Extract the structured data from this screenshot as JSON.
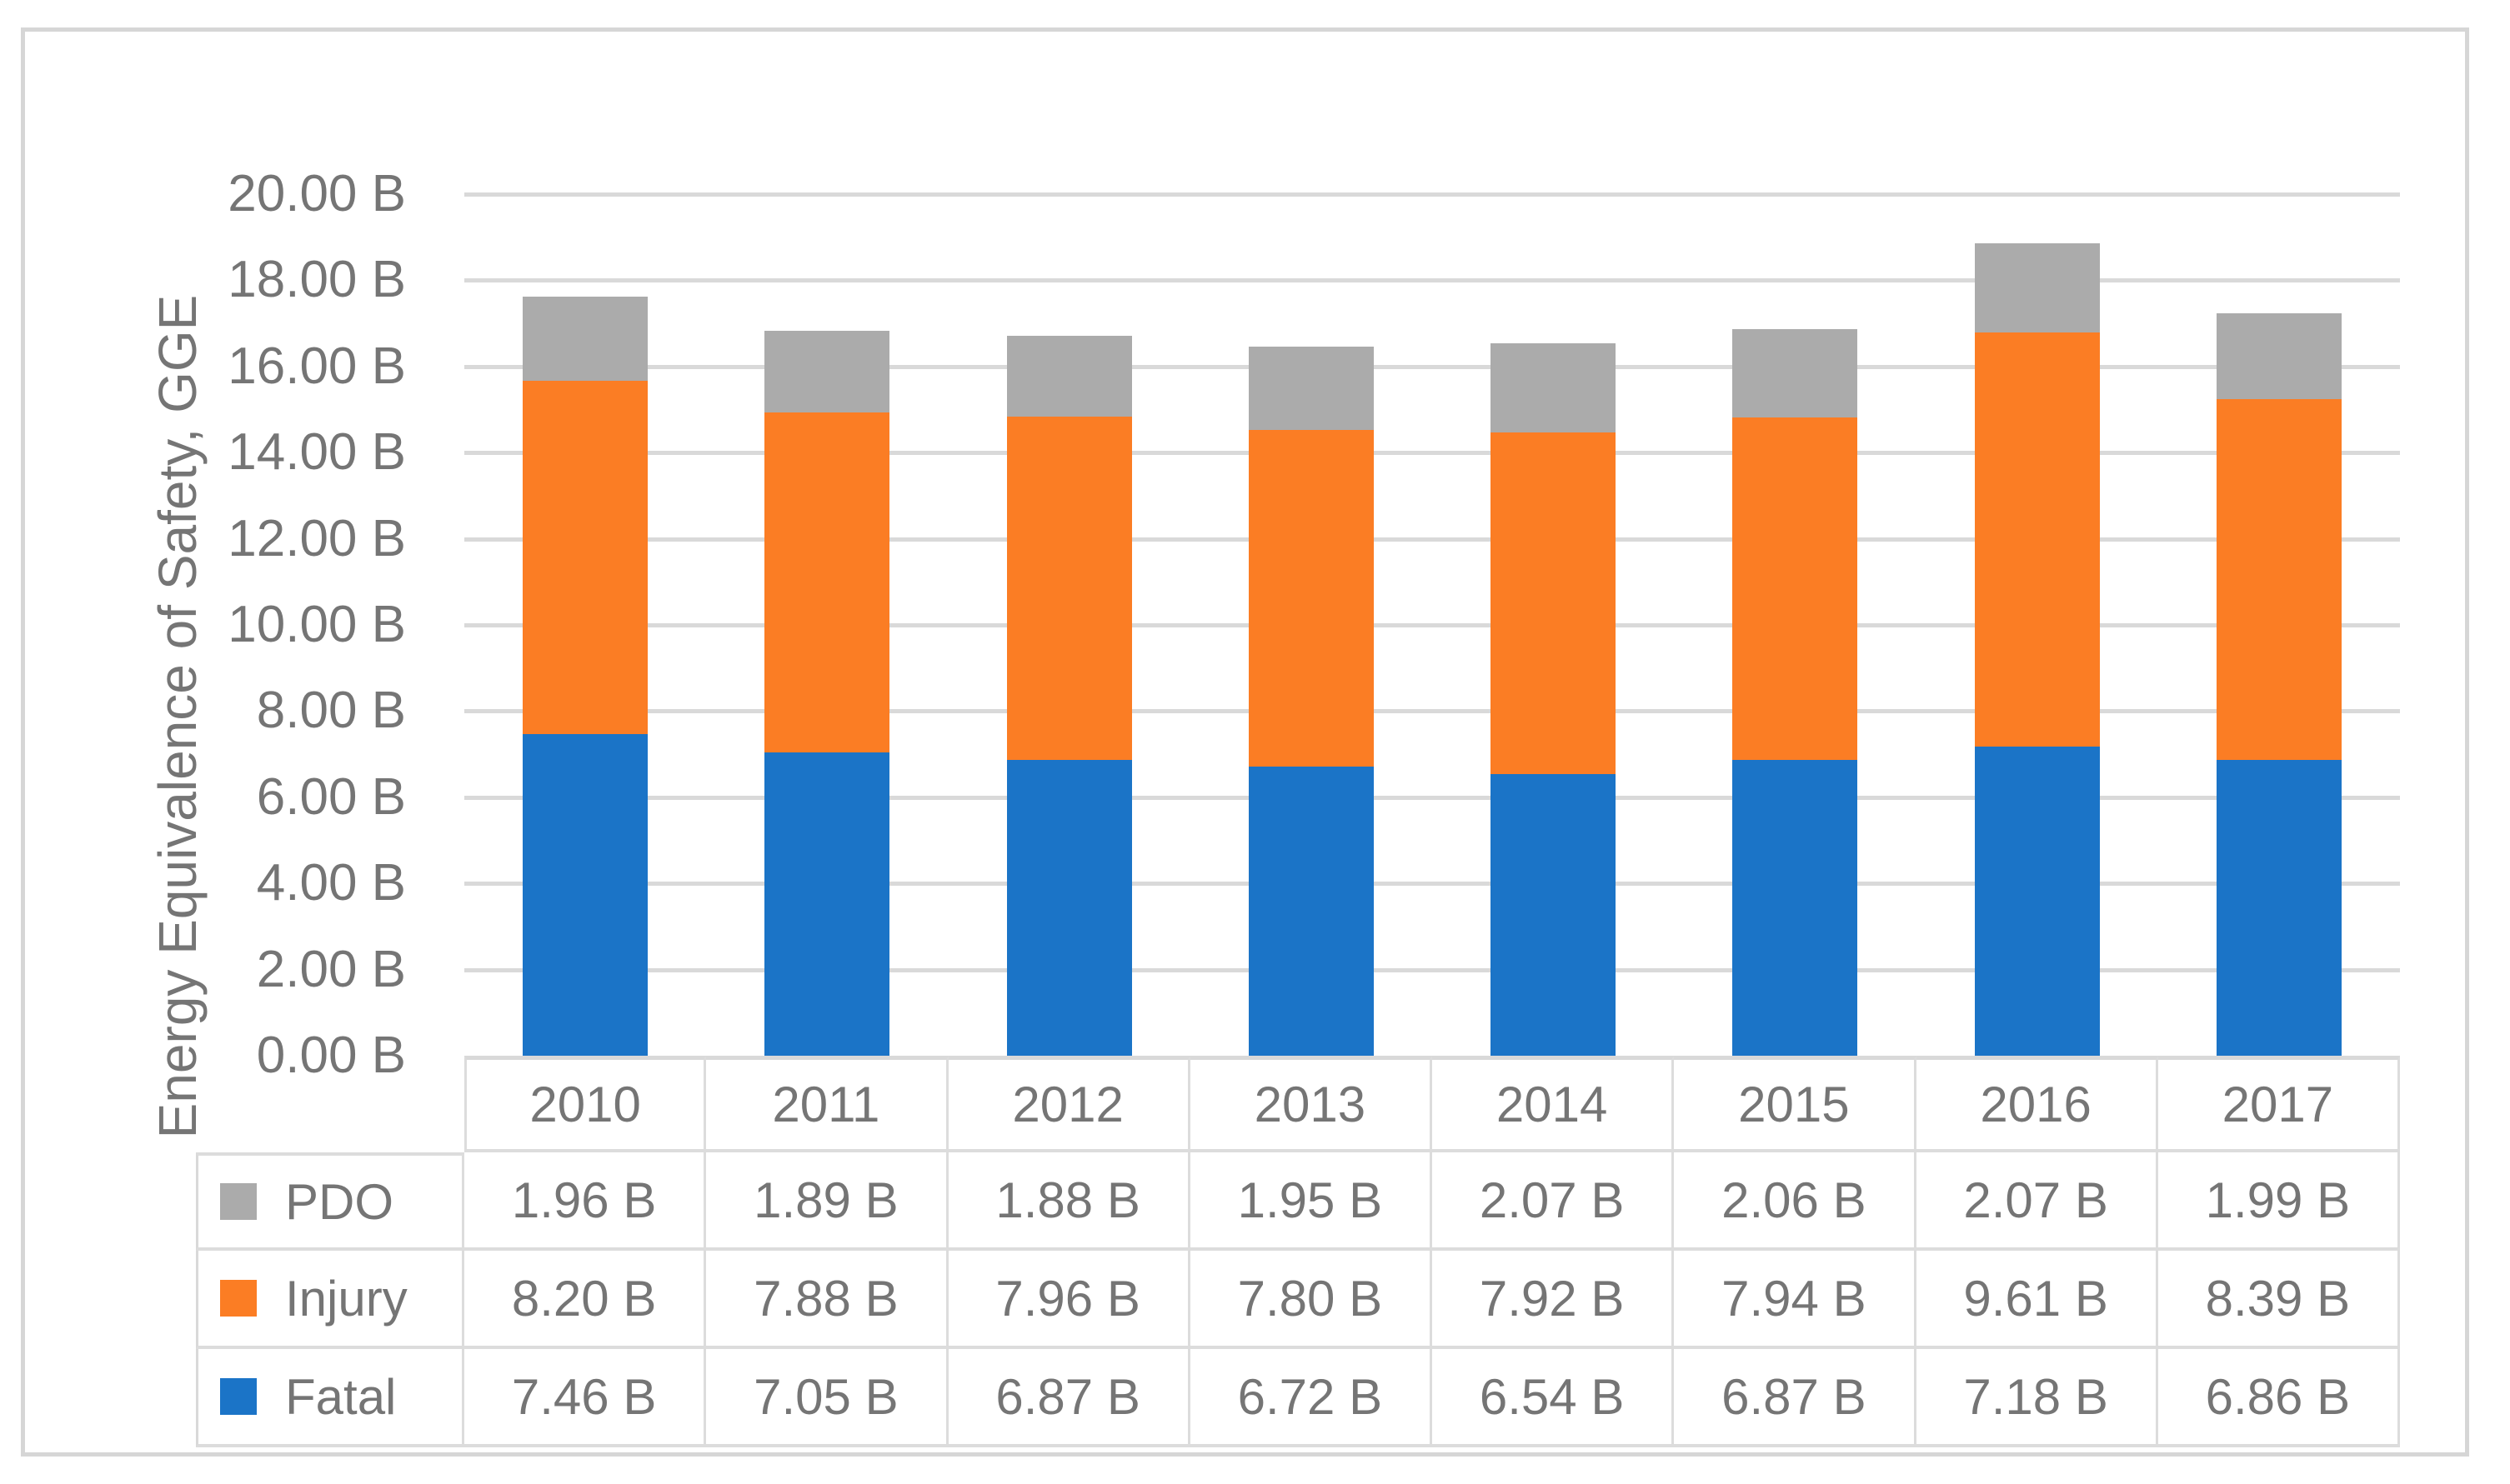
{
  "chart_data": {
    "type": "bar",
    "stacked": true,
    "title": "",
    "xlabel": "",
    "ylabel": "Energy Equivalence of Safety, GGE",
    "value_suffix": " B",
    "ylim": [
      0,
      20
    ],
    "ytick_step": 2,
    "grid": true,
    "legend_position": "data-table-left",
    "categories": [
      "2010",
      "2011",
      "2012",
      "2013",
      "2014",
      "2015",
      "2016",
      "2017"
    ],
    "series": [
      {
        "name": "PDO",
        "color": "#ababab",
        "values": [
          1.96,
          1.89,
          1.88,
          1.95,
          2.07,
          2.06,
          2.07,
          1.99
        ]
      },
      {
        "name": "Injury",
        "color": "#fb7d24",
        "values": [
          8.2,
          7.88,
          7.96,
          7.8,
          7.92,
          7.94,
          9.61,
          8.39
        ]
      },
      {
        "name": "Fatal",
        "color": "#1b74c7",
        "values": [
          7.46,
          7.05,
          6.87,
          6.72,
          6.54,
          6.87,
          7.18,
          6.86
        ]
      }
    ],
    "stack_order_bottom_to_top": [
      "Fatal",
      "Injury",
      "PDO"
    ],
    "table_row_order": [
      "PDO",
      "Injury",
      "Fatal"
    ]
  },
  "colors": {
    "gridline": "#d9d9d9",
    "text": "#757575",
    "table_border": "#dcdcdc",
    "frame_border": "#d6d6d6"
  }
}
